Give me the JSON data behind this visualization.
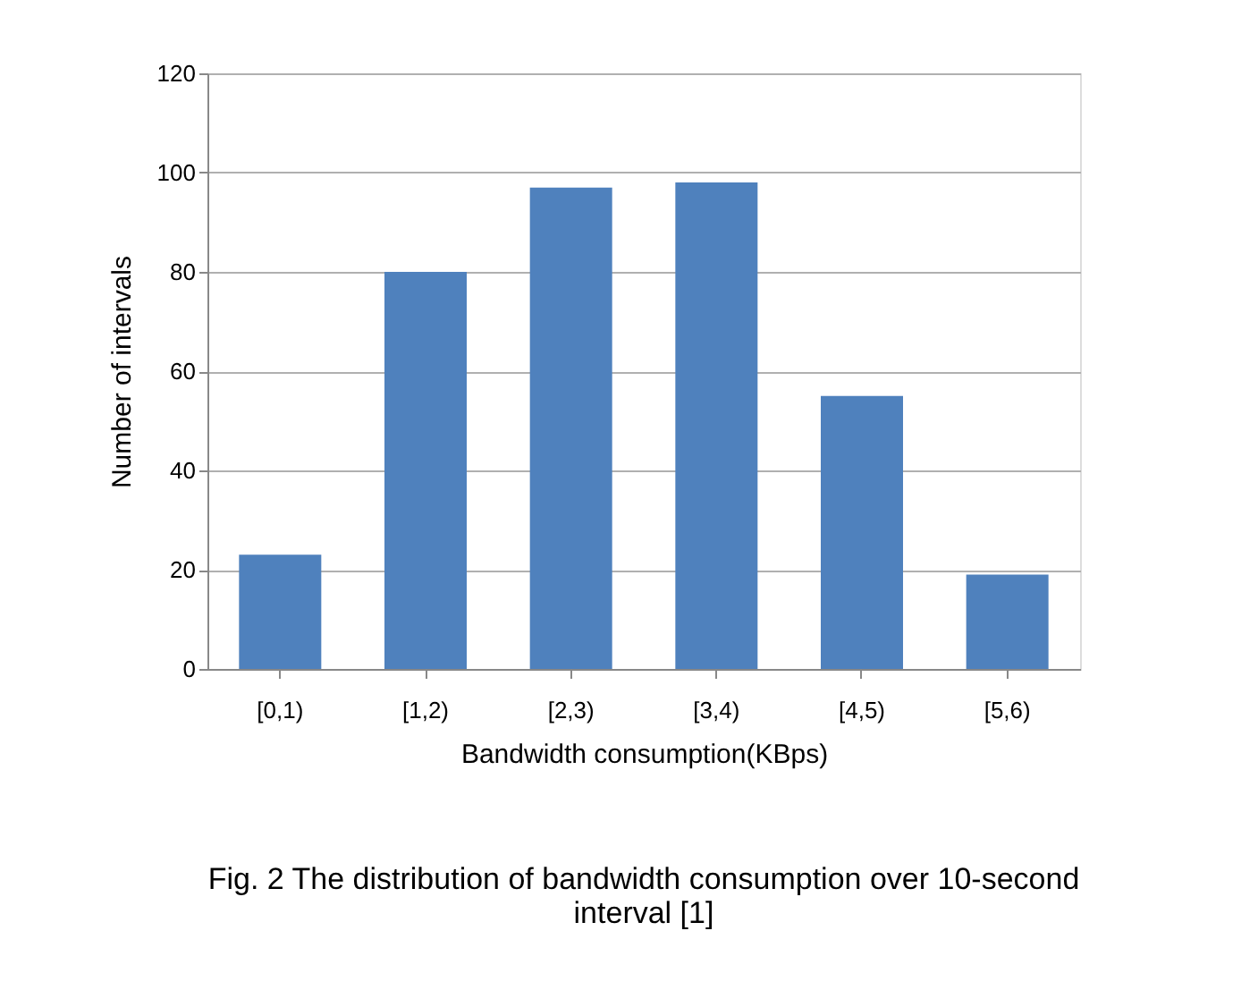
{
  "chart_data": {
    "type": "bar",
    "xlabel": "Bandwidth consumption(KBps)",
    "ylabel": "Number of intervals",
    "categories": [
      "[0,1)",
      "[1,2)",
      "[2,3)",
      "[3,4)",
      "[4,5)",
      "[5,6)"
    ],
    "values": [
      23,
      80,
      97,
      98,
      55,
      19
    ],
    "color": "#4f81bd",
    "ylim": [
      0,
      120
    ],
    "yticks": [
      0,
      20,
      40,
      60,
      80,
      100,
      120
    ],
    "grid": "y",
    "annotations": [
      "Fig. 2 The distribution of bandwidth consumption over 10-second interval [1]"
    ]
  }
}
